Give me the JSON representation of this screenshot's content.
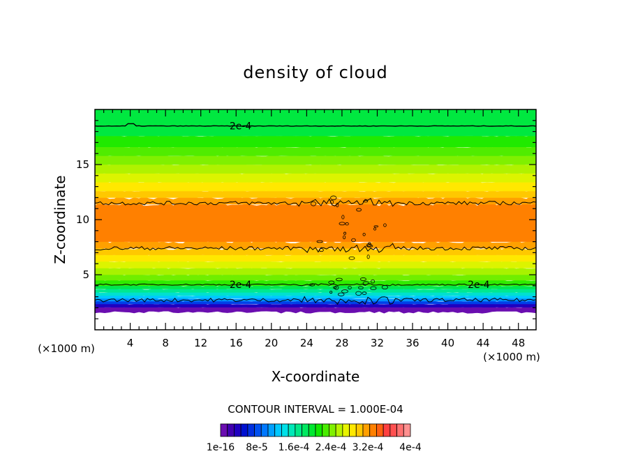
{
  "chart_data": {
    "type": "heatmap",
    "title": "density of cloud",
    "xlabel": "X-coordinate",
    "ylabel": "Z-coordinate",
    "x_unit": "(×1000 m)",
    "y_unit": "(×1000 m)",
    "xlim": [
      0,
      50
    ],
    "ylim": [
      0,
      20
    ],
    "x_ticks": [
      4,
      8,
      12,
      16,
      20,
      24,
      28,
      32,
      36,
      40,
      44,
      48
    ],
    "y_ticks": [
      5,
      10,
      15
    ],
    "contour_interval_text": "CONTOUR INTERVAL = 1.000E-04",
    "contour_labels": [
      {
        "text": "2e-4",
        "x": 16.5,
        "z": 18.5
      },
      {
        "text": "2e-4",
        "x": 16.5,
        "z": 4.1
      },
      {
        "text": "2e-4",
        "x": 43.5,
        "z": 4.1
      }
    ],
    "colorbar": {
      "colors": [
        "#6a0db0",
        "#4000b0",
        "#2000c0",
        "#0010d0",
        "#0030e0",
        "#0050f0",
        "#0078ff",
        "#00a0ff",
        "#00c8ff",
        "#00e0e8",
        "#00e8b8",
        "#00e888",
        "#00e860",
        "#00e830",
        "#10e800",
        "#48ec00",
        "#80f000",
        "#b8f400",
        "#e8f400",
        "#ffe800",
        "#ffc800",
        "#ffa000",
        "#ff8000",
        "#ff6010",
        "#ff4040",
        "#ff5050",
        "#ff7070",
        "#ff9090"
      ],
      "labels": [
        "1e-16",
        "8e-5",
        "1.6e-4",
        "2.4e-4",
        "3.2e-4",
        "4e-4"
      ]
    },
    "bands": [
      {
        "z0": 1.6,
        "z1": 2.05,
        "color": "#6a0db0"
      },
      {
        "z0": 2.05,
        "z1": 2.35,
        "color": "#2000c0"
      },
      {
        "z0": 2.35,
        "z1": 2.6,
        "color": "#0040e8"
      },
      {
        "z0": 2.6,
        "z1": 2.85,
        "color": "#0090ff"
      },
      {
        "z0": 2.85,
        "z1": 3.1,
        "color": "#00c8ff"
      },
      {
        "z0": 3.1,
        "z1": 3.4,
        "color": "#00e0d0"
      },
      {
        "z0": 3.4,
        "z1": 3.7,
        "color": "#00e890"
      },
      {
        "z0": 3.7,
        "z1": 4.0,
        "color": "#00e850"
      },
      {
        "z0": 4.0,
        "z1": 4.5,
        "color": "#30ea00"
      },
      {
        "z0": 4.5,
        "z1": 5.0,
        "color": "#70ee00"
      },
      {
        "z0": 5.0,
        "z1": 5.6,
        "color": "#a8f200"
      },
      {
        "z0": 5.6,
        "z1": 6.2,
        "color": "#dcf400"
      },
      {
        "z0": 6.2,
        "z1": 6.8,
        "color": "#ffe800"
      },
      {
        "z0": 6.8,
        "z1": 7.4,
        "color": "#ffc800"
      },
      {
        "z0": 7.4,
        "z1": 8.0,
        "color": "#ffa000"
      },
      {
        "z0": 8.0,
        "z1": 11.4,
        "color": "#ff8000"
      },
      {
        "z0": 11.4,
        "z1": 12.0,
        "color": "#ffa000"
      },
      {
        "z0": 12.0,
        "z1": 12.6,
        "color": "#ffc800"
      },
      {
        "z0": 12.6,
        "z1": 13.4,
        "color": "#ffe800"
      },
      {
        "z0": 13.4,
        "z1": 14.2,
        "color": "#dcf400"
      },
      {
        "z0": 14.2,
        "z1": 15.0,
        "color": "#b0f200"
      },
      {
        "z0": 15.0,
        "z1": 15.8,
        "color": "#80f000"
      },
      {
        "z0": 15.8,
        "z1": 16.6,
        "color": "#50ec00"
      },
      {
        "z0": 16.6,
        "z1": 17.6,
        "color": "#20ea00"
      },
      {
        "z0": 17.6,
        "z1": 20.0,
        "color": "#00e840"
      }
    ],
    "contour_lines": [
      {
        "z": 18.5,
        "kind": "smooth"
      },
      {
        "z": 11.5,
        "kind": "rough"
      },
      {
        "z": 7.4,
        "kind": "rough"
      },
      {
        "z": 4.1,
        "kind": "medium"
      },
      {
        "z": 2.7,
        "kind": "rough"
      }
    ]
  }
}
